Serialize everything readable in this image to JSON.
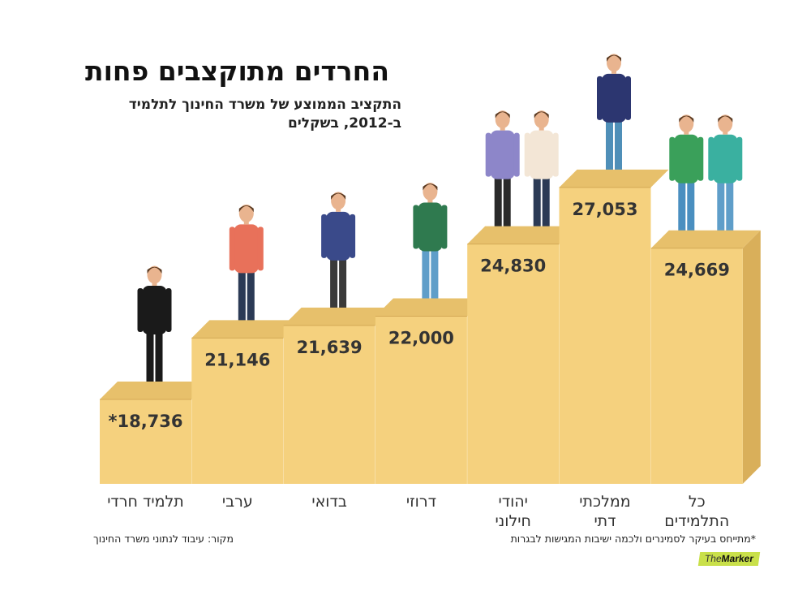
{
  "header": {
    "title": "החרדים מתוקצבים פחות",
    "subtitle": "התקציב הממוצע של משרד החינוך לתלמיד ב-2012, בשקלים"
  },
  "footer": {
    "source": "מקור: עיבוד לנתוני משרד החינוך",
    "note": "*מתייחס בעיקר לסמינרים ולכמה ישיבות המגישות לבגרות",
    "logo_prefix": "The",
    "logo_brand": "Marker"
  },
  "colors": {
    "face": "#f5d17e",
    "top": "#e7c06b",
    "side": "#d9af5a",
    "label": "#333333"
  },
  "chart_data": {
    "type": "bar",
    "title": "החרדים מתוקצבים פחות",
    "subtitle": "התקציב הממוצע של משרד החינוך לתלמיד ב-2012, בשקלים",
    "unit": "שקלים",
    "categories": [
      [
        "תלמיד חרדי"
      ],
      [
        "ערבי"
      ],
      [
        "בדואי"
      ],
      [
        "דרוזי"
      ],
      [
        "יהודי",
        "חילוני"
      ],
      [
        "ממלכתי",
        "דתי"
      ],
      [
        "כל",
        "התלמידים"
      ]
    ],
    "values": [
      18736,
      21146,
      21639,
      22000,
      24830,
      27053,
      24669
    ],
    "value_labels": [
      "*18,736",
      "21,146",
      "21,639",
      "22,000",
      "24,830",
      "27,053",
      "24,669"
    ],
    "grid": false,
    "legend": "none"
  }
}
